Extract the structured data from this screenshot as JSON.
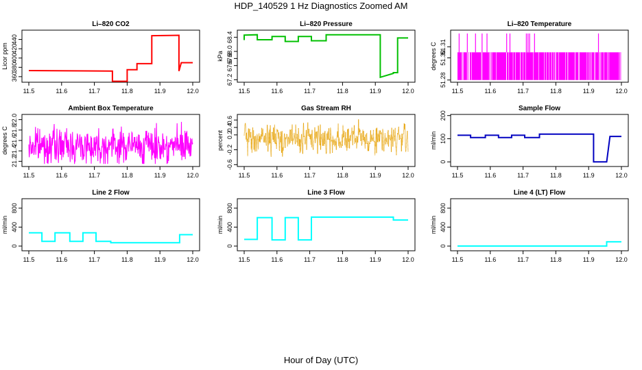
{
  "figure": {
    "title": "HDP_140529  1 Hz Diagnostics Zoomed AM",
    "xlabel": "Hour of Day (UTC)"
  },
  "chart_data": [
    {
      "type": "line",
      "title": "Li–820 CO2",
      "ylabel": "Licor ppm",
      "color": "#ff0000",
      "xlim": [
        11.5,
        12.0
      ],
      "ylim": [
        348,
        460
      ],
      "xticks": [
        "11.5",
        "11.6",
        "11.7",
        "11.8",
        "11.9",
        "12.0"
      ],
      "yticks": [
        "360",
        "380",
        "400",
        "420",
        "440"
      ],
      "x": [
        11.5,
        11.755,
        11.755,
        11.8,
        11.8,
        11.83,
        11.83,
        11.875,
        11.875,
        11.958,
        11.958,
        11.965,
        11.965,
        12.0
      ],
      "y": [
        373,
        372,
        350,
        350,
        375,
        375,
        388,
        388,
        448,
        449,
        372,
        390,
        390,
        390
      ]
    },
    {
      "type": "line",
      "title": "Li–820 Pressure",
      "ylabel": "kPa",
      "color": "#00c000",
      "xlim": [
        11.5,
        12.0
      ],
      "ylim": [
        67.13,
        68.6
      ],
      "xticks": [
        "11.5",
        "11.6",
        "11.7",
        "11.8",
        "11.9",
        "12.0"
      ],
      "yticks": [
        "67.2",
        "67.6",
        "67.8",
        "68.0",
        "68.4"
      ],
      "x": [
        11.5,
        11.5,
        11.54,
        11.54,
        11.585,
        11.585,
        11.625,
        11.625,
        11.665,
        11.665,
        11.705,
        11.705,
        11.75,
        11.75,
        11.915,
        11.915,
        11.955,
        11.955,
        11.968,
        11.968,
        12.0
      ],
      "y": [
        68.32,
        68.46,
        68.47,
        68.33,
        68.33,
        68.42,
        68.42,
        68.28,
        68.28,
        68.42,
        68.42,
        68.3,
        68.3,
        68.47,
        68.47,
        67.27,
        67.38,
        67.4,
        67.4,
        68.38,
        68.38
      ]
    },
    {
      "type": "line",
      "title": "Li–820 Temperature",
      "ylabel": "degrees C",
      "color": "#ff00ff",
      "xlim": [
        11.5,
        12.0
      ],
      "ylim": [
        51.278,
        51.325
      ],
      "xticks": [
        "11.5",
        "11.6",
        "11.7",
        "11.8",
        "11.9",
        "12.0"
      ],
      "yticks": [
        "51.28",
        "51.30",
        "51.31"
      ],
      "band": [
        51.28,
        51.305
      ],
      "spikes": [
        11.505,
        11.53,
        11.555,
        11.575,
        11.59,
        11.65,
        11.66,
        11.71,
        11.715,
        11.72,
        11.735,
        11.93
      ],
      "spike_top": 51.322
    },
    {
      "type": "line",
      "title": "Ambient Box Temperature",
      "ylabel": "degrees C",
      "color": "#ff00ff",
      "xlim": [
        11.5,
        12.0
      ],
      "ylim": [
        21.1,
        22.1
      ],
      "xticks": [
        "11.5",
        "11.6",
        "11.7",
        "11.8",
        "11.9",
        "12.0"
      ],
      "yticks": [
        "21.2",
        "21.4",
        "21.6",
        "21.8",
        "22.0"
      ],
      "noise": {
        "center": 21.5,
        "range": [
          21.15,
          22.05
        ]
      }
    },
    {
      "type": "line",
      "title": "Gas Stream RH",
      "ylabel": "percent",
      "color": "#e6a000",
      "xlim": [
        11.5,
        12.0
      ],
      "ylim": [
        -0.65,
        0.75
      ],
      "xticks": [
        "11.5",
        "11.6",
        "11.7",
        "11.8",
        "11.9",
        "12.0"
      ],
      "yticks": [
        "-0.6",
        "-0.2",
        "0.2",
        "0.4",
        "0.6"
      ],
      "noise": {
        "center": 0.1,
        "range": [
          -0.55,
          0.62
        ]
      }
    },
    {
      "type": "line",
      "title": "Sample Flow",
      "ylabel": "ml/min",
      "color": "#0000c0",
      "xlim": [
        11.5,
        12.0
      ],
      "ylim": [
        -20,
        205
      ],
      "xticks": [
        "11.5",
        "11.6",
        "11.7",
        "11.8",
        "11.9",
        "12.0"
      ],
      "yticks": [
        "0",
        "100",
        "200"
      ],
      "x": [
        11.5,
        11.54,
        11.54,
        11.585,
        11.585,
        11.625,
        11.625,
        11.665,
        11.665,
        11.705,
        11.705,
        11.75,
        11.75,
        11.915,
        11.915,
        11.955,
        11.955,
        11.965,
        11.965,
        12.0
      ],
      "y": [
        115,
        115,
        105,
        105,
        115,
        115,
        105,
        105,
        115,
        115,
        105,
        105,
        120,
        120,
        0,
        0,
        0,
        110,
        110,
        110
      ]
    },
    {
      "type": "line",
      "title": "Line 2 Flow",
      "ylabel": "ml/min",
      "color": "#00ffff",
      "xlim": [
        11.5,
        12.0
      ],
      "ylim": [
        -100,
        1000
      ],
      "xticks": [
        "11.5",
        "11.6",
        "11.7",
        "11.8",
        "11.9",
        "12.0"
      ],
      "yticks": [
        "0",
        "400",
        "800"
      ],
      "x": [
        11.5,
        11.54,
        11.54,
        11.58,
        11.58,
        11.625,
        11.625,
        11.665,
        11.665,
        11.705,
        11.705,
        11.75,
        11.75,
        11.96,
        11.96,
        12.0
      ],
      "y": [
        280,
        280,
        100,
        100,
        280,
        280,
        100,
        100,
        280,
        280,
        100,
        100,
        70,
        70,
        240,
        240
      ]
    },
    {
      "type": "line",
      "title": "Line 3 Flow",
      "ylabel": "ml/min",
      "color": "#00ffff",
      "xlim": [
        11.5,
        12.0
      ],
      "ylim": [
        -100,
        1000
      ],
      "xticks": [
        "11.5",
        "11.6",
        "11.7",
        "11.8",
        "11.9",
        "12.0"
      ],
      "yticks": [
        "0",
        "400",
        "800"
      ],
      "x": [
        11.5,
        11.54,
        11.54,
        11.585,
        11.585,
        11.625,
        11.625,
        11.665,
        11.665,
        11.705,
        11.705,
        11.955,
        11.955,
        12.0
      ],
      "y": [
        140,
        140,
        600,
        600,
        130,
        130,
        600,
        600,
        130,
        130,
        610,
        610,
        550,
        550
      ]
    },
    {
      "type": "line",
      "title": "Line 4 (LT) Flow",
      "ylabel": "ml/min",
      "color": "#00ffff",
      "xlim": [
        11.5,
        12.0
      ],
      "ylim": [
        -100,
        1000
      ],
      "xticks": [
        "11.5",
        "11.6",
        "11.7",
        "11.8",
        "11.9",
        "12.0"
      ],
      "yticks": [
        "0",
        "400",
        "800"
      ],
      "x": [
        11.5,
        11.955,
        11.955,
        12.0
      ],
      "y": [
        0,
        0,
        90,
        90
      ]
    }
  ]
}
